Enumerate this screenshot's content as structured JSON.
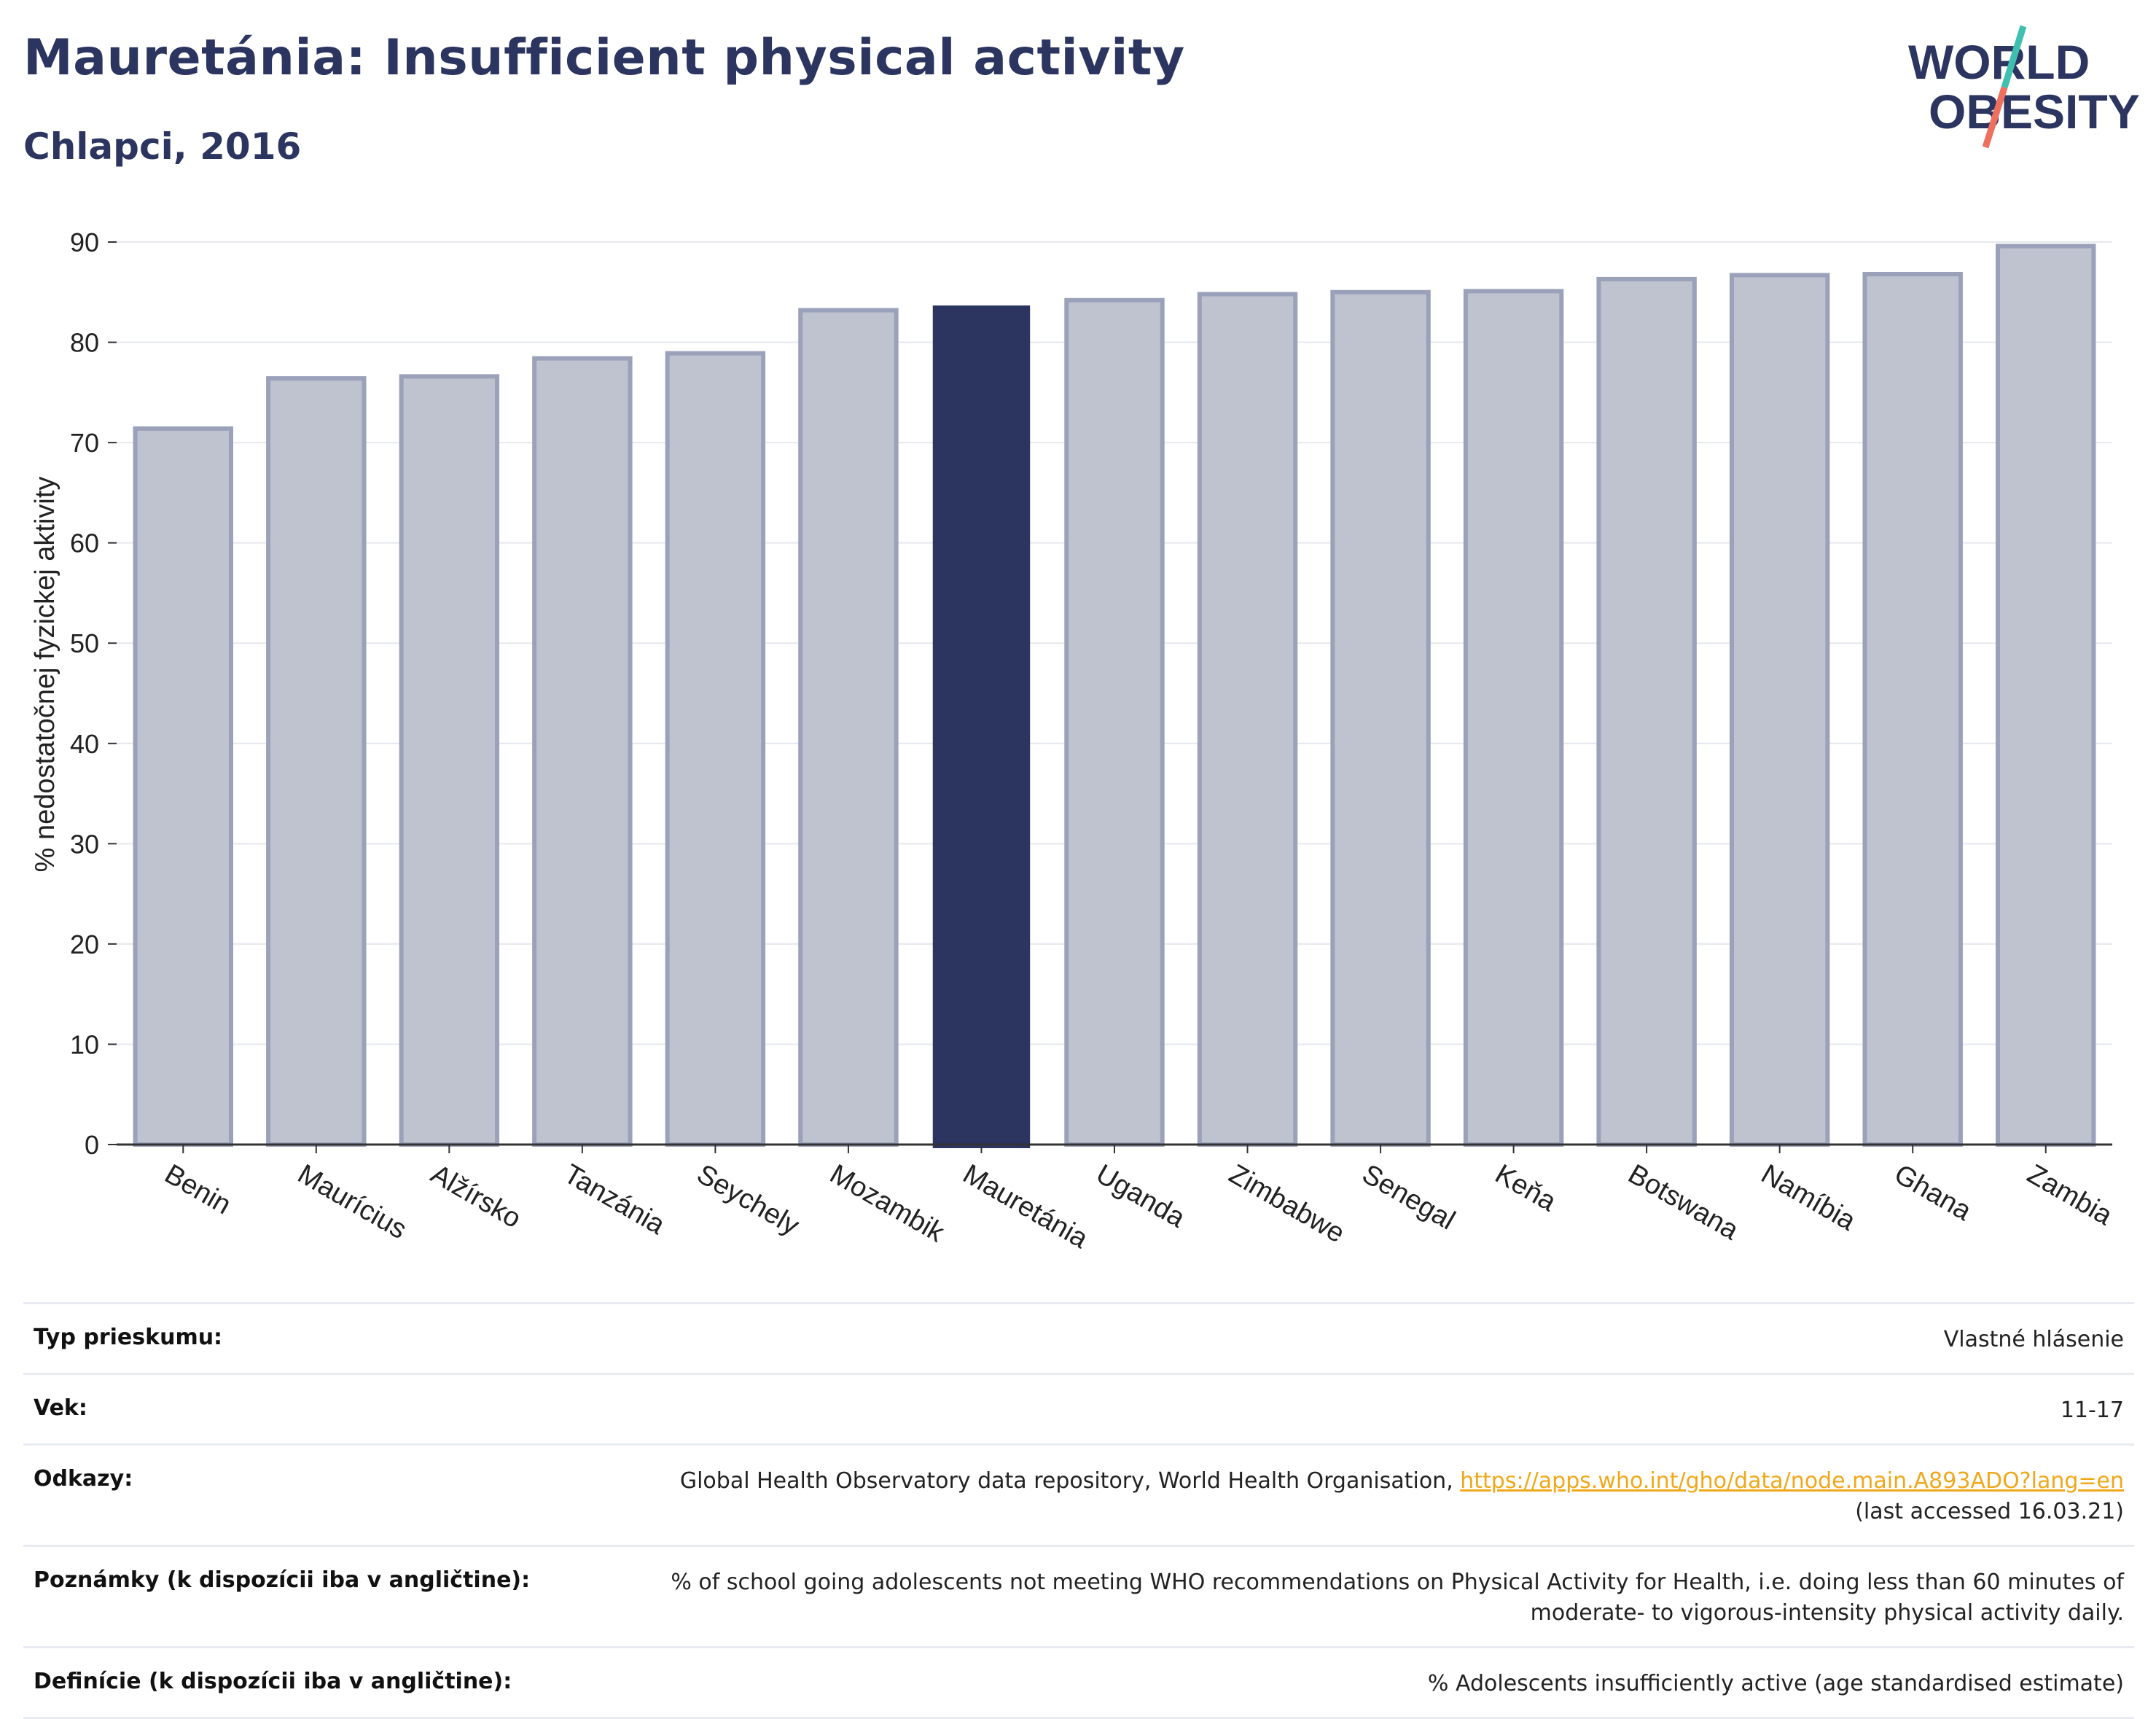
{
  "header": {
    "title": "Mauretánia: Insufficient physical activity",
    "subtitle": "Chlapci, 2016"
  },
  "logo": {
    "line1": "WORLD",
    "line2": "OBESITY"
  },
  "colors": {
    "highlight": "#2b3560",
    "bar": "#bfc3d0",
    "bar_stroke": "#9aa1b9",
    "title": "#2b3560",
    "link": "#f0a81a",
    "logo_teal": "#3fbfb0",
    "logo_coral": "#ef6f5e"
  },
  "chart_data": {
    "type": "bar",
    "ylabel": "% nedostatočnej fyzickej aktivity",
    "ylim": [
      0,
      90
    ],
    "yticks": [
      0,
      10,
      20,
      30,
      40,
      50,
      60,
      70,
      80,
      90
    ],
    "grid": true,
    "highlight": "Mauretánia",
    "categories": [
      "Benin",
      "Maurícius",
      "Alžírsko",
      "Tanzánia",
      "Seychely",
      "Mozambik",
      "Mauretánia",
      "Uganda",
      "Zimbabwe",
      "Senegal",
      "Keňa",
      "Botswana",
      "Namíbia",
      "Ghana",
      "Zambia"
    ],
    "values": [
      71.4,
      76.4,
      76.6,
      78.4,
      78.9,
      83.2,
      83.6,
      84.2,
      84.8,
      85.0,
      85.1,
      86.3,
      86.7,
      86.8,
      89.6
    ]
  },
  "meta": [
    {
      "label": "Typ prieskumu:",
      "value": "Vlastné hlásenie"
    },
    {
      "label": "Vek:",
      "value": "11-17"
    },
    {
      "label": "Odkazy:",
      "value": "Global Health Observatory data repository, World Health Organisation, ",
      "link": "https://apps.who.int/gho/data/node.main.A893ADO?lang=en",
      "value2": "(last accessed 16.03.21)"
    },
    {
      "label": "Poznámky (k dispozícii iba v angličtine):",
      "value": "% of school going adolescents not meeting WHO recommendations on Physical Activity for Health, i.e. doing less than 60 minutes of",
      "value2": "moderate- to vigorous-intensity physical activity daily."
    },
    {
      "label": "Definície (k dispozícii iba v angličtine):",
      "value": "% Adolescents insufficiently active (age standardised estimate)"
    }
  ]
}
